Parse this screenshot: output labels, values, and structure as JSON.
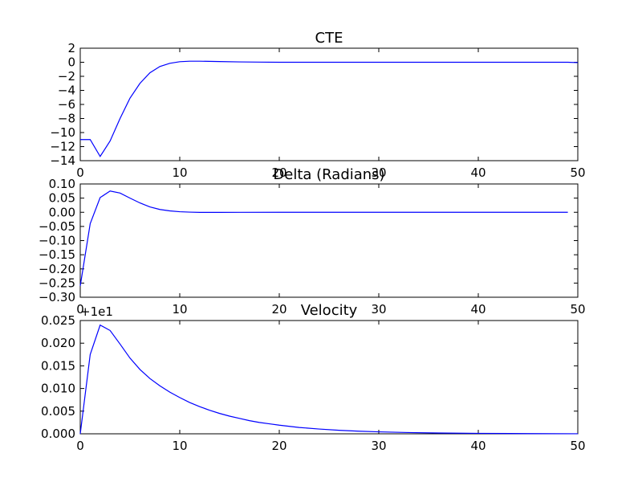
{
  "figure": {
    "background": "#ffffff",
    "line_color": "#0000ff"
  },
  "chart_data": [
    {
      "type": "line",
      "title": "CTE",
      "xlim": [
        0,
        50
      ],
      "ylim": [
        -14,
        2
      ],
      "xticks": [
        0,
        10,
        20,
        30,
        40,
        50
      ],
      "yticks": [
        2,
        0,
        -2,
        -4,
        -6,
        -8,
        -10,
        -12,
        -14
      ],
      "xtick_labels": [
        "0",
        "10",
        "20",
        "30",
        "40",
        "50"
      ],
      "ytick_labels": [
        "2",
        "0",
        "−2",
        "−4",
        "−6",
        "−8",
        "−10",
        "−12",
        "−14"
      ],
      "x": [
        0,
        1,
        2,
        3,
        4,
        5,
        6,
        7,
        8,
        9,
        10,
        11,
        12,
        14,
        16,
        18,
        20,
        25,
        30,
        35,
        40,
        45,
        49,
        50
      ],
      "y": [
        -11,
        -11,
        -13.4,
        -11.2,
        -8,
        -5.1,
        -3,
        -1.5,
        -0.6,
        -0.15,
        0.08,
        0.15,
        0.15,
        0.1,
        0.05,
        0.02,
        0.0,
        0.0,
        0.0,
        0.0,
        0.0,
        0.0,
        0.0,
        -0.05
      ],
      "grid": false
    },
    {
      "type": "line",
      "title": "Delta (Radians)",
      "xlim": [
        0,
        50
      ],
      "ylim": [
        -0.3,
        0.1
      ],
      "xticks": [
        0,
        10,
        20,
        30,
        40,
        50
      ],
      "yticks": [
        0.1,
        0.05,
        0.0,
        -0.05,
        -0.1,
        -0.15,
        -0.2,
        -0.25,
        -0.3
      ],
      "xtick_labels": [
        "0",
        "10",
        "20",
        "30",
        "40",
        "50"
      ],
      "ytick_labels": [
        "0.10",
        "0.05",
        "0.00",
        "−0.05",
        "−0.10",
        "−0.15",
        "−0.20",
        "−0.25",
        "−0.30"
      ],
      "x": [
        0,
        1,
        2,
        3,
        4,
        5,
        6,
        7,
        8,
        9,
        10,
        11,
        12,
        14,
        16,
        20,
        30,
        40,
        49
      ],
      "y": [
        -0.26,
        -0.04,
        0.052,
        0.075,
        0.068,
        0.05,
        0.033,
        0.019,
        0.01,
        0.005,
        0.002,
        0.0005,
        -0.0003,
        -0.0004,
        -0.0002,
        0.0,
        0.0,
        0.0,
        0.0
      ],
      "grid": false
    },
    {
      "type": "line",
      "title": "Velocity",
      "offset_label": "+1e1",
      "xlim": [
        0,
        50
      ],
      "ylim": [
        0,
        0.025
      ],
      "xticks": [
        0,
        10,
        20,
        30,
        40,
        50
      ],
      "yticks": [
        0.025,
        0.02,
        0.015,
        0.01,
        0.005,
        0.0
      ],
      "xtick_labels": [
        "0",
        "10",
        "20",
        "30",
        "40",
        "50"
      ],
      "ytick_labels": [
        "0.025",
        "0.020",
        "0.015",
        "0.010",
        "0.005",
        "0.000"
      ],
      "x": [
        0,
        1,
        2,
        3,
        4,
        5,
        6,
        7,
        8,
        9,
        10,
        11,
        12,
        13,
        14,
        15,
        16,
        17,
        18,
        19,
        20,
        22,
        24,
        26,
        28,
        30,
        33,
        36,
        40,
        45,
        50
      ],
      "y": [
        0.0,
        0.0175,
        0.024,
        0.0228,
        0.0198,
        0.0167,
        0.0142,
        0.0122,
        0.0106,
        0.0092,
        0.008,
        0.0069,
        0.006,
        0.0052,
        0.0045,
        0.0039,
        0.0034,
        0.0029,
        0.0025,
        0.0022,
        0.0019,
        0.0014,
        0.00105,
        0.00078,
        0.00058,
        0.00043,
        0.00028,
        0.00018,
        0.0001,
        4e-05,
        1e-05
      ],
      "grid": false
    }
  ]
}
